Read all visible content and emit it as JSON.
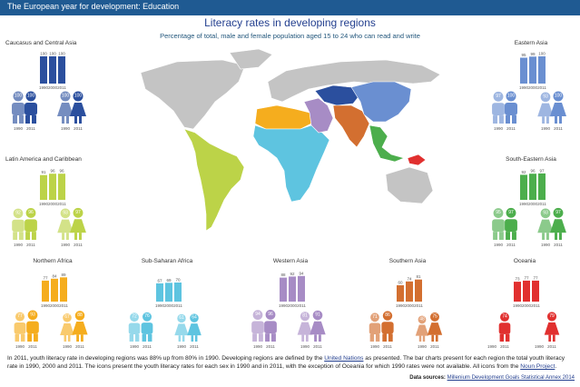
{
  "header": {
    "banner": "The European year for development: Education",
    "title": "Literacy rates in developing regions",
    "subtitle": "Percentage of total, male and female population aged 15 to 24 who can read and write"
  },
  "chart_data": [
    {
      "type": "bar",
      "region": "Caucasus and Central Asia",
      "color": "#2b4f9e",
      "categories": [
        "1990",
        "2000",
        "2011"
      ],
      "values": [
        100,
        100,
        100
      ],
      "male": [
        100,
        100
      ],
      "female": [
        100,
        100
      ],
      "sex_years": [
        "1990",
        "2011"
      ]
    },
    {
      "type": "bar",
      "region": "Eastern Asia",
      "color": "#6a8fd1",
      "categories": [
        "1990",
        "2000",
        "2011"
      ],
      "values": [
        95,
        99,
        100
      ],
      "male": [
        97,
        100
      ],
      "female": [
        93,
        100
      ],
      "sex_years": [
        "1990",
        "2011"
      ]
    },
    {
      "type": "bar",
      "region": "Latin America and Caribbean",
      "color": "#bcd348",
      "categories": [
        "1990",
        "2000",
        "2011"
      ],
      "values": [
        91,
        96,
        96
      ],
      "male": [
        92,
        96
      ],
      "female": [
        93,
        97
      ],
      "sex_years": [
        "1990",
        "2011"
      ]
    },
    {
      "type": "bar",
      "region": "South-Eastern Asia",
      "color": "#4cae4c",
      "categories": [
        "1990",
        "2000",
        "2011"
      ],
      "values": [
        92,
        96,
        97
      ],
      "male": [
        95,
        97
      ],
      "female": [
        93,
        97
      ],
      "sex_years": [
        "1990",
        "2011"
      ]
    },
    {
      "type": "bar",
      "region": "Northern Africa",
      "color": "#f5ad1e",
      "categories": [
        "1990",
        "2000",
        "2011"
      ],
      "values": [
        77,
        84,
        89
      ],
      "male": [
        77,
        93
      ],
      "female": [
        67,
        88
      ],
      "sex_years": [
        "1990",
        "2011"
      ]
    },
    {
      "type": "bar",
      "region": "Sub-Saharan Africa",
      "color": "#5ec4e0",
      "categories": [
        "1990",
        "2000",
        "2011"
      ],
      "values": [
        67,
        69,
        70
      ],
      "male": [
        72,
        76
      ],
      "female": [
        61,
        64
      ],
      "sex_years": [
        "1990",
        "2011"
      ]
    },
    {
      "type": "bar",
      "region": "Western Asia",
      "color": "#a78cc5",
      "categories": [
        "1990",
        "2000",
        "2011"
      ],
      "values": [
        88,
        92,
        94
      ],
      "male": [
        94,
        96
      ],
      "female": [
        81,
        91
      ],
      "sex_years": [
        "1990",
        "2011"
      ]
    },
    {
      "type": "bar",
      "region": "Southern Asia",
      "color": "#d36f30",
      "categories": [
        "1990",
        "2000",
        "2011"
      ],
      "values": [
        60,
        74,
        81
      ],
      "male": [
        71,
        86
      ],
      "female": [
        48,
        75
      ],
      "sex_years": [
        "1990",
        "2011"
      ]
    },
    {
      "type": "bar",
      "region": "Oceania",
      "color": "#e1302f",
      "categories": [
        "1990",
        "2000",
        "2011"
      ],
      "values": [
        73,
        77,
        77
      ],
      "male": [
        null,
        74
      ],
      "female": [
        null,
        79
      ],
      "sex_years": [
        "1990",
        "2011"
      ]
    }
  ],
  "footer": {
    "text_a": "In 2011,  youth literacy rate in developing regions was 88%  up from 80% in 1990. Developing regions are defined by the ",
    "un_link": "United Nations",
    "text_b": " as presented. The bar charts present for each region the total youth literacy rate in 1990, 2000 and 2011.  The icons present the youth literacy rates for each sex in 1990 and in 2011, with the exception of Oceania  for which  1990  rates were not available.  All icons from the ",
    "noun_link": "Noun Project",
    "text_c": ".",
    "sources_label": "Data sources:",
    "sources_link": "Millenium Development Goals Statistical Annex 2014"
  }
}
